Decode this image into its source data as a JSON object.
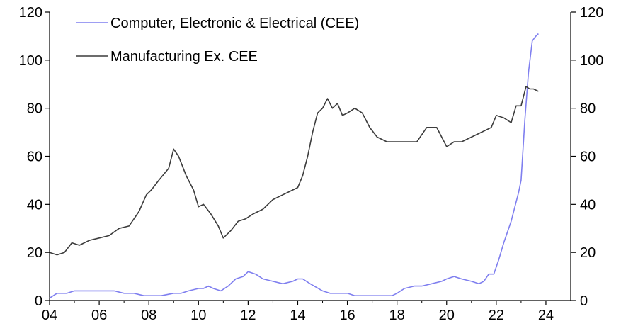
{
  "chart_data": {
    "type": "line",
    "title": "",
    "xlabel": "",
    "ylabel": "",
    "xlim": [
      2004,
      2025
    ],
    "ylim": [
      0,
      120
    ],
    "y_ticks": [
      0,
      20,
      40,
      60,
      80,
      100,
      120
    ],
    "x_ticks": [
      2004,
      2006,
      2008,
      2010,
      2012,
      2014,
      2016,
      2018,
      2020,
      2022,
      2024
    ],
    "x_tick_labels": [
      "04",
      "06",
      "08",
      "10",
      "12",
      "14",
      "16",
      "18",
      "20",
      "22",
      "24"
    ],
    "right_axis": true,
    "grid": false,
    "legend": "top-left",
    "series": [
      {
        "name": "Computer, Electronic & Electrical (CEE)",
        "color": "#7f7fef",
        "x": [
          2004.0,
          2004.3,
          2004.7,
          2005.0,
          2005.4,
          2005.8,
          2006.0,
          2006.3,
          2006.6,
          2007.0,
          2007.4,
          2007.8,
          2008.0,
          2008.5,
          2009.0,
          2009.3,
          2009.6,
          2010.0,
          2010.2,
          2010.4,
          2010.6,
          2010.9,
          2011.2,
          2011.5,
          2011.8,
          2012.0,
          2012.3,
          2012.6,
          2013.0,
          2013.4,
          2013.8,
          2014.0,
          2014.2,
          2014.5,
          2015.0,
          2015.3,
          2015.6,
          2016.0,
          2016.3,
          2016.7,
          2017.0,
          2017.4,
          2017.8,
          2018.0,
          2018.3,
          2018.7,
          2019.0,
          2019.4,
          2019.8,
          2020.0,
          2020.3,
          2020.6,
          2021.0,
          2021.3,
          2021.5,
          2021.7,
          2021.9,
          2022.1,
          2022.3,
          2022.6,
          2022.9,
          2023.0,
          2023.15,
          2023.3,
          2023.45,
          2023.6,
          2023.7
        ],
        "y": [
          1,
          3,
          3,
          4,
          4,
          4,
          4,
          4,
          4,
          3,
          3,
          2,
          2,
          2,
          3,
          3,
          4,
          5,
          5,
          6,
          5,
          4,
          6,
          9,
          10,
          12,
          11,
          9,
          8,
          7,
          8,
          9,
          9,
          7,
          4,
          3,
          3,
          3,
          2,
          2,
          2,
          2,
          2,
          3,
          5,
          6,
          6,
          7,
          8,
          9,
          10,
          9,
          8,
          7,
          8,
          11,
          11,
          17,
          24,
          33,
          45,
          50,
          75,
          95,
          108,
          110,
          111
        ]
      },
      {
        "name": "Manufacturing Ex. CEE",
        "color": "#3c3c3c",
        "x": [
          2004.0,
          2004.3,
          2004.6,
          2004.9,
          2005.2,
          2005.6,
          2006.0,
          2006.4,
          2006.8,
          2007.2,
          2007.6,
          2007.9,
          2008.1,
          2008.4,
          2008.8,
          2009.0,
          2009.2,
          2009.5,
          2009.8,
          2010.0,
          2010.2,
          2010.5,
          2010.8,
          2011.0,
          2011.3,
          2011.6,
          2011.9,
          2012.2,
          2012.6,
          2013.0,
          2013.4,
          2013.8,
          2014.0,
          2014.2,
          2014.4,
          2014.6,
          2014.8,
          2015.0,
          2015.2,
          2015.4,
          2015.6,
          2015.8,
          2016.0,
          2016.3,
          2016.6,
          2016.9,
          2017.2,
          2017.6,
          2018.0,
          2018.4,
          2018.8,
          2019.2,
          2019.6,
          2020.0,
          2020.3,
          2020.6,
          2021.0,
          2021.4,
          2021.8,
          2022.0,
          2022.3,
          2022.6,
          2022.8,
          2023.0,
          2023.2,
          2023.35,
          2023.5,
          2023.7
        ],
        "y": [
          20,
          19,
          20,
          24,
          23,
          25,
          26,
          27,
          30,
          31,
          37,
          44,
          46,
          50,
          55,
          63,
          60,
          52,
          46,
          39,
          40,
          36,
          31,
          26,
          29,
          33,
          34,
          36,
          38,
          42,
          44,
          46,
          47,
          52,
          60,
          70,
          78,
          80,
          84,
          80,
          82,
          77,
          78,
          80,
          78,
          72,
          68,
          66,
          66,
          66,
          66,
          72,
          72,
          64,
          66,
          66,
          68,
          70,
          72,
          77,
          76,
          74,
          81,
          81,
          89,
          88,
          88,
          87
        ]
      }
    ]
  }
}
